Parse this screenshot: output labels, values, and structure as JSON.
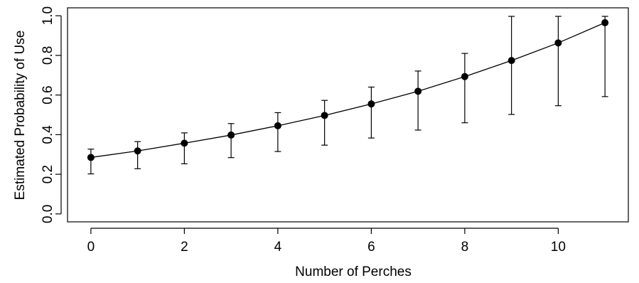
{
  "chart_data": {
    "type": "scatter",
    "title": "",
    "xlabel": "Number of Perches",
    "ylabel": "Estimated Probability of Use",
    "xlim": [
      -0.5,
      11.5
    ],
    "ylim": [
      -0.04,
      1.04
    ],
    "x_ticks": [
      0,
      2,
      4,
      6,
      8,
      10
    ],
    "x_tick_labels": [
      "0",
      "2",
      "4",
      "6",
      "8",
      "10"
    ],
    "y_ticks": [
      0.0,
      0.2,
      0.4,
      0.6,
      0.8,
      1.0
    ],
    "y_tick_labels": [
      "0.0",
      "0.2",
      "0.4",
      "0.6",
      "0.8",
      "1.0"
    ],
    "grid": false,
    "legend": "none",
    "connected": true,
    "error_bars": true,
    "series": [
      {
        "x": [
          0,
          1,
          2,
          3,
          4,
          5,
          6,
          7,
          8,
          9,
          10,
          11
        ],
        "y": [
          0.285,
          0.318,
          0.357,
          0.398,
          0.445,
          0.497,
          0.555,
          0.619,
          0.693,
          0.774,
          0.863,
          0.965
        ],
        "lower": [
          0.202,
          0.228,
          0.253,
          0.284,
          0.315,
          0.347,
          0.383,
          0.423,
          0.46,
          0.502,
          0.546,
          0.592
        ],
        "upper": [
          0.327,
          0.365,
          0.409,
          0.456,
          0.511,
          0.573,
          0.64,
          0.721,
          0.81,
          0.997,
          0.997,
          0.997
        ]
      }
    ]
  },
  "colors": {
    "line": "#000000",
    "point": "#000000",
    "axis": "#000000"
  }
}
